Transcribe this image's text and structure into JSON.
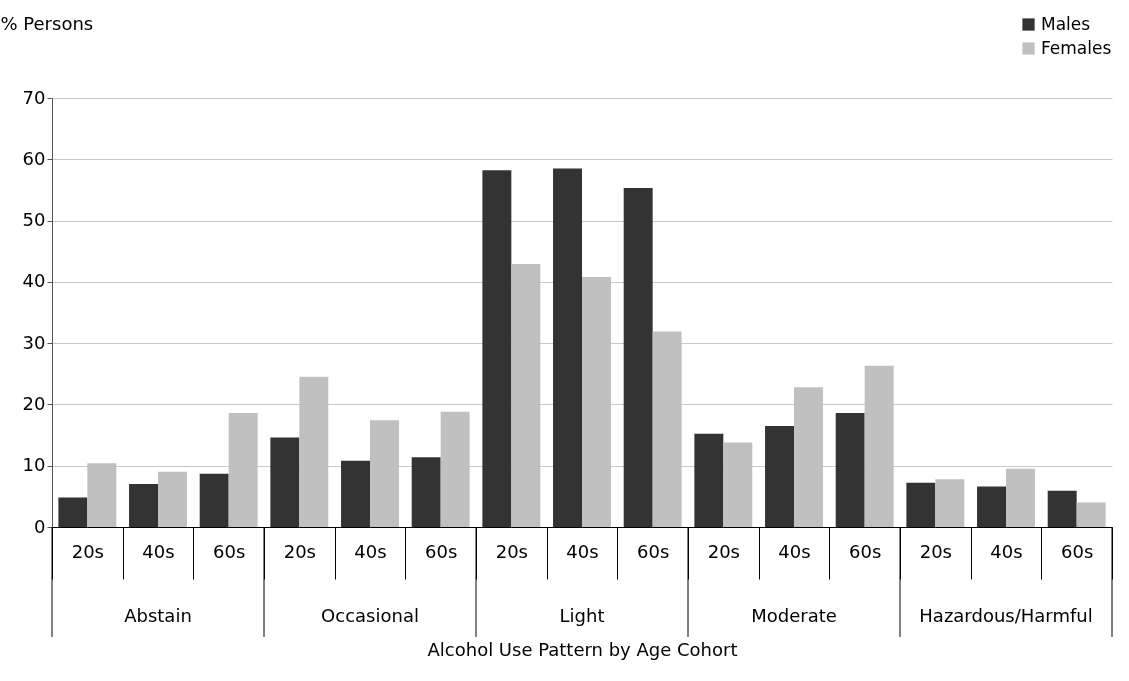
{
  "chart_data": {
    "type": "bar",
    "xlabel": "Alcohol Use Pattern by Age Cohort",
    "ylabel": "% Persons",
    "categories": [
      "20s",
      "40s",
      "60s",
      "20s",
      "40s",
      "60s",
      "20s",
      "40s",
      "60s",
      "20s",
      "40s",
      "60s",
      "20s",
      "40s",
      "60s"
    ],
    "annotations": [
      "Abstain",
      "Occasional",
      "Light",
      "Moderate",
      "Hazardous/Harmful"
    ],
    "series": [
      {
        "name": "Males",
        "color": "#333333",
        "values": [
          4.8,
          7.0,
          8.7,
          14.6,
          10.8,
          11.4,
          58.2,
          58.5,
          55.3,
          15.2,
          16.5,
          18.6,
          7.2,
          6.6,
          5.9
        ]
      },
      {
        "name": "Females",
        "color": "#c0c0c0",
        "values": [
          10.4,
          9.0,
          18.6,
          24.5,
          17.4,
          18.8,
          42.9,
          40.8,
          31.9,
          13.8,
          22.8,
          26.3,
          7.8,
          9.5,
          4.0
        ]
      }
    ],
    "ylim": [
      0,
      70
    ],
    "yticks": [
      0,
      10,
      20,
      30,
      40,
      50,
      60,
      70
    ],
    "grid": "y",
    "legend": "top right"
  }
}
